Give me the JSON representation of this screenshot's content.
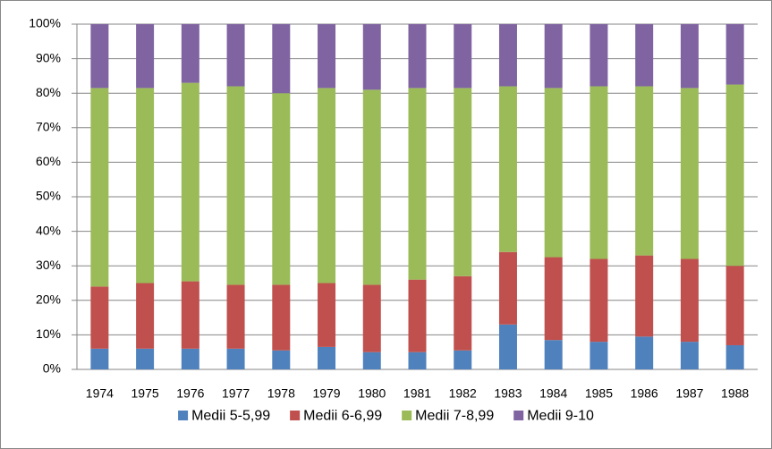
{
  "chart_data": {
    "type": "stacked_bar_100",
    "categories": [
      "1974",
      "1975",
      "1976",
      "1977",
      "1978",
      "1979",
      "1980",
      "1981",
      "1982",
      "1983",
      "1984",
      "1985",
      "1986",
      "1987",
      "1988"
    ],
    "series": [
      {
        "name": "Medii 5-5,99",
        "color": "#4f81bd",
        "values": [
          6,
          6,
          6,
          6,
          5.5,
          6.5,
          5,
          5,
          5.5,
          13,
          8.5,
          8,
          9.5,
          8,
          7
        ]
      },
      {
        "name": "Medii 6-6,99",
        "color": "#c0504d",
        "values": [
          18,
          19,
          19.5,
          18.5,
          19,
          18.5,
          19.5,
          21,
          21.5,
          21,
          24,
          24,
          23.5,
          24,
          23
        ]
      },
      {
        "name": "Medii 7-8,99",
        "color": "#9bbb59",
        "values": [
          57.5,
          56.5,
          57.5,
          57.5,
          55.5,
          56.5,
          56.5,
          55.5,
          54.5,
          48,
          49,
          50,
          49,
          49.5,
          52.5
        ]
      },
      {
        "name": "Medii 9-10",
        "color": "#8064a2",
        "values": [
          18.5,
          18.5,
          17,
          18,
          20,
          18.5,
          19,
          18.5,
          18.5,
          18,
          18.5,
          18,
          18,
          18.5,
          17.5
        ]
      }
    ],
    "ylim": [
      0,
      100
    ],
    "yticks": [
      {
        "value": 0,
        "label": "0%"
      },
      {
        "value": 10,
        "label": "10%"
      },
      {
        "value": 20,
        "label": "20%"
      },
      {
        "value": 30,
        "label": "30%"
      },
      {
        "value": 40,
        "label": "40%"
      },
      {
        "value": 50,
        "label": "50%"
      },
      {
        "value": 60,
        "label": "60%"
      },
      {
        "value": 70,
        "label": "70%"
      },
      {
        "value": 80,
        "label": "80%"
      },
      {
        "value": 90,
        "label": "90%"
      },
      {
        "value": 100,
        "label": "100%"
      }
    ],
    "grid": true,
    "legend": "bottom"
  }
}
